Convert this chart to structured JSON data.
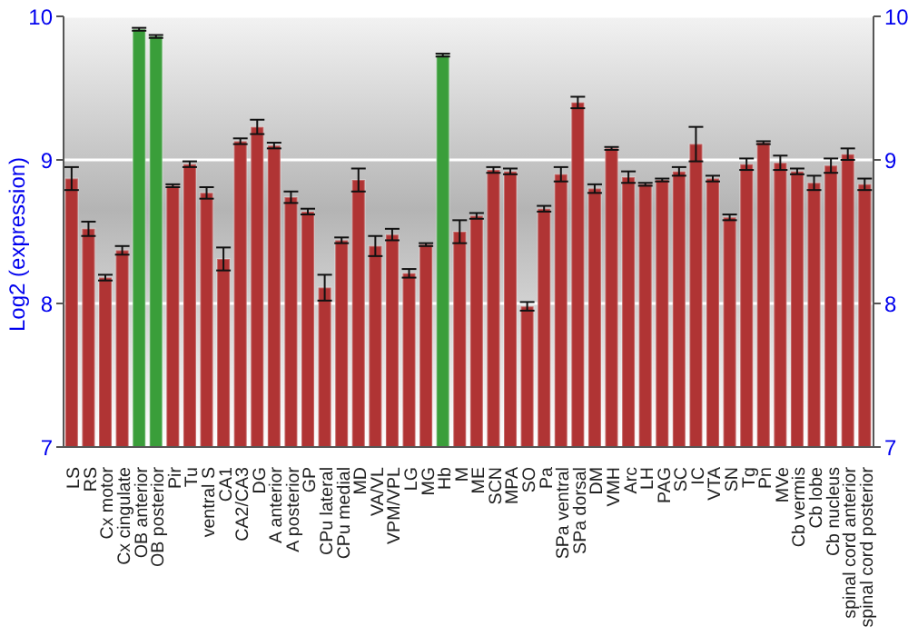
{
  "chart_data": {
    "type": "bar",
    "ylabel": "Log2 (expression)",
    "categories": [
      "LS",
      "RS",
      "Cx motor",
      "Cx cingulate",
      "OB anterior",
      "OB posterior",
      "Pir",
      "Tu",
      "ventral S",
      "CA1",
      "CA2/CA3",
      "DG",
      "A anterior",
      "A posterior",
      "GP",
      "CPu lateral",
      "CPu medial",
      "MD",
      "VA/VL",
      "VPM/VPL",
      "LG",
      "MG",
      "Hb",
      "M",
      "ME",
      "SCN",
      "MPA",
      "SO",
      "Pa",
      "SPa ventral",
      "SPa dorsal",
      "DM",
      "VMH",
      "Arc",
      "LH",
      "PAG",
      "SC",
      "IC",
      "VTA",
      "SN",
      "Tg",
      "Pn",
      "MVe",
      "Cb vermis",
      "Cb lobe",
      "Cb nucleus",
      "spinal cord anterior",
      "spinal cord posterior"
    ],
    "values": [
      8.87,
      8.52,
      8.18,
      8.37,
      9.91,
      9.86,
      8.82,
      8.97,
      8.77,
      8.31,
      9.13,
      9.23,
      9.1,
      8.74,
      8.64,
      8.11,
      8.44,
      8.86,
      8.4,
      8.48,
      8.21,
      8.41,
      9.73,
      8.5,
      8.61,
      8.93,
      8.92,
      7.98,
      8.66,
      8.9,
      9.4,
      8.8,
      9.08,
      8.88,
      8.83,
      8.86,
      8.92,
      9.11,
      8.87,
      8.6,
      8.97,
      9.12,
      8.98,
      8.92,
      8.84,
      8.96,
      9.04,
      8.83
    ],
    "errors": [
      0.08,
      0.05,
      0.02,
      0.03,
      0.01,
      0.01,
      0.01,
      0.02,
      0.04,
      0.08,
      0.02,
      0.05,
      0.02,
      0.04,
      0.02,
      0.09,
      0.02,
      0.08,
      0.07,
      0.04,
      0.03,
      0.01,
      0.01,
      0.08,
      0.02,
      0.02,
      0.02,
      0.03,
      0.02,
      0.05,
      0.04,
      0.03,
      0.01,
      0.04,
      0.01,
      0.01,
      0.03,
      0.12,
      0.02,
      0.02,
      0.04,
      0.01,
      0.05,
      0.02,
      0.05,
      0.05,
      0.04,
      0.04
    ],
    "colors": [
      "#b03434",
      "#b03434",
      "#b03434",
      "#b03434",
      "#3a9e3a",
      "#3a9e3a",
      "#b03434",
      "#b03434",
      "#b03434",
      "#b03434",
      "#b03434",
      "#b03434",
      "#b03434",
      "#b03434",
      "#b03434",
      "#b03434",
      "#b03434",
      "#b03434",
      "#b03434",
      "#b03434",
      "#b03434",
      "#b03434",
      "#3a9e3a",
      "#b03434",
      "#b03434",
      "#b03434",
      "#b03434",
      "#b03434",
      "#b03434",
      "#b03434",
      "#b03434",
      "#b03434",
      "#b03434",
      "#b03434",
      "#b03434",
      "#b03434",
      "#b03434",
      "#b03434",
      "#b03434",
      "#b03434",
      "#b03434",
      "#b03434",
      "#b03434",
      "#b03434",
      "#b03434",
      "#b03434",
      "#b03434",
      "#b03434"
    ],
    "ylim": [
      7,
      10
    ],
    "yticks": [
      7,
      8,
      9,
      10
    ],
    "y2lim": [
      7,
      10
    ],
    "y2ticks": [
      7,
      8,
      9,
      10
    ],
    "grid": "y",
    "legend": false
  }
}
